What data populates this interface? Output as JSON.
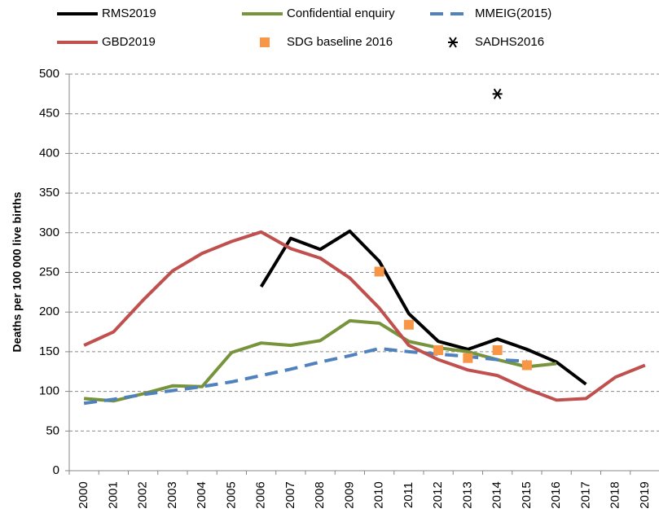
{
  "chart_data": {
    "type": "line",
    "ylabel": "Deaths per 100 000 live births",
    "categories": [
      "2000",
      "2001",
      "2002",
      "2003",
      "2004",
      "2005",
      "2006",
      "2007",
      "2008",
      "2009",
      "2010",
      "2011",
      "2012",
      "2013",
      "2014",
      "2015",
      "2016",
      "2017",
      "2018",
      "2019"
    ],
    "ylim": [
      0,
      500
    ],
    "yticks": [
      0,
      50,
      100,
      150,
      200,
      250,
      300,
      350,
      400,
      450,
      500
    ],
    "grid": true,
    "series": [
      {
        "name": "RMS2019",
        "color": "#000000",
        "style": "solid",
        "values": [
          null,
          null,
          null,
          null,
          null,
          null,
          232,
          293,
          279,
          302,
          264,
          198,
          163,
          153,
          166,
          153,
          137,
          109,
          null,
          null
        ]
      },
      {
        "name": "Confidential enquiry",
        "color": "#77933c",
        "style": "solid",
        "values": [
          91,
          88,
          97,
          107,
          106,
          149,
          161,
          158,
          164,
          189,
          186,
          163,
          155,
          150,
          140,
          131,
          135,
          null,
          null,
          null
        ]
      },
      {
        "name": "MMEIG(2015)",
        "color": "#4f81bd",
        "style": "dashed",
        "values": [
          85,
          90,
          96,
          101,
          106,
          112,
          120,
          128,
          137,
          145,
          154,
          150,
          147,
          144,
          140,
          138,
          null,
          null,
          null,
          null
        ]
      },
      {
        "name": "GBD2019",
        "color": "#c0504d",
        "style": "solid",
        "values": [
          158,
          175,
          215,
          252,
          274,
          289,
          301,
          280,
          268,
          243,
          205,
          158,
          140,
          127,
          120,
          103,
          89,
          91,
          118,
          133
        ]
      },
      {
        "name": "SDG baseline 2016",
        "color": "#f79646",
        "style": "square",
        "values": [
          null,
          null,
          null,
          null,
          null,
          null,
          null,
          null,
          null,
          null,
          251,
          184,
          152,
          142,
          152,
          133,
          null,
          null,
          null,
          null
        ]
      },
      {
        "name": "SADHS2016",
        "color": "#000000",
        "style": "asterisk",
        "values": [
          null,
          null,
          null,
          null,
          null,
          null,
          null,
          null,
          null,
          null,
          null,
          null,
          null,
          null,
          475,
          null,
          null,
          null,
          null,
          null
        ]
      }
    ]
  }
}
